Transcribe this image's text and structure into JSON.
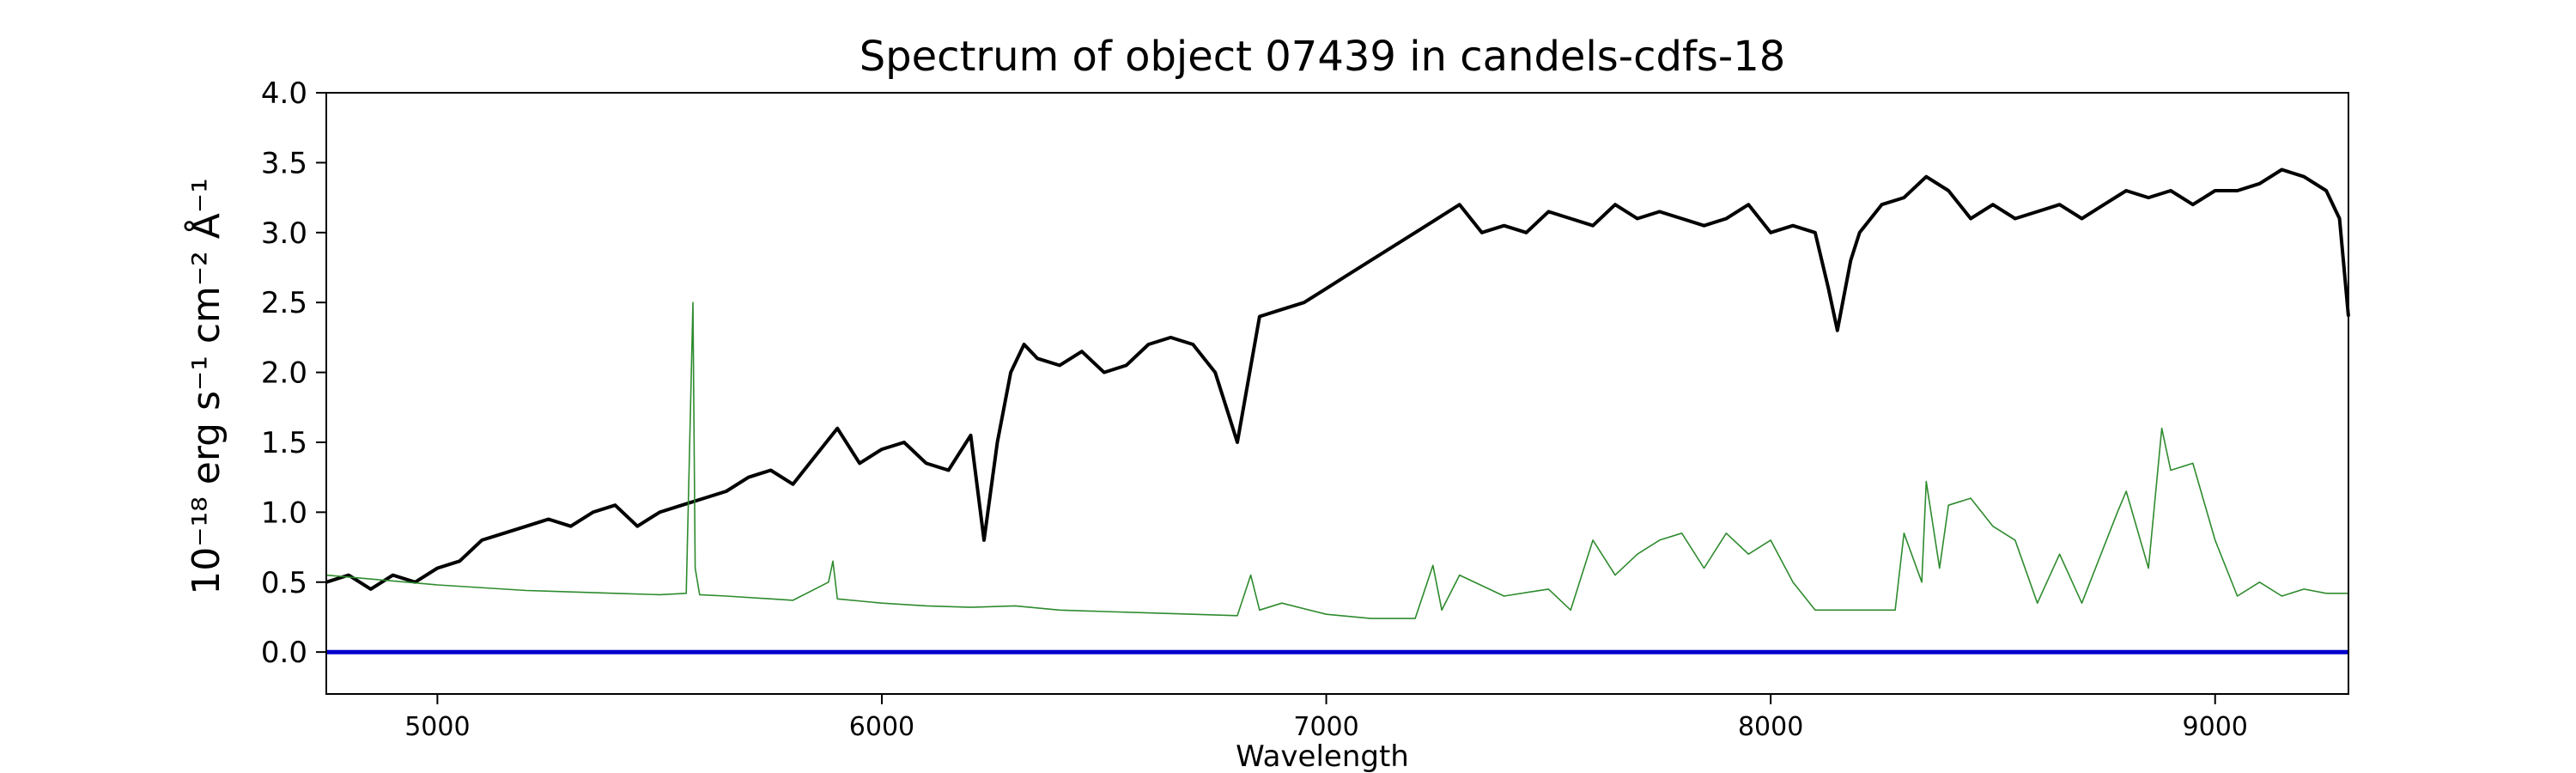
{
  "chart_data": {
    "type": "line",
    "title": "Spectrum of object 07439 in candels-cdfs-18",
    "xlabel": "Wavelength",
    "ylabel": "10⁻¹⁸ erg s⁻¹ cm⁻² Å⁻¹",
    "xlim": [
      4750,
      9300
    ],
    "ylim": [
      -0.3,
      4.0
    ],
    "x_ticks": [
      5000,
      6000,
      7000,
      8000,
      9000
    ],
    "y_ticks": [
      "0.0",
      "0.5",
      "1.0",
      "1.5",
      "2.0",
      "2.5",
      "3.0",
      "3.5",
      "4.0"
    ],
    "grid": false,
    "colors": {
      "flux": "#000000",
      "sky": "#2e8b2e",
      "zero": "#0000cc"
    },
    "series": [
      {
        "values_x": [
          4750,
          4800,
          4850,
          4900,
          4950,
          5000,
          5050,
          5100,
          5150,
          5200,
          5250,
          5300,
          5350,
          5400,
          5450,
          5500,
          5550,
          5600,
          5650,
          5700,
          5750,
          5800,
          5850,
          5900,
          5950,
          6000,
          6050,
          6100,
          6150,
          6200,
          6230,
          6260,
          6290,
          6320,
          6350,
          6400,
          6450,
          6500,
          6550,
          6600,
          6650,
          6700,
          6750,
          6780,
          6800,
          6850,
          6900,
          6950,
          7000,
          7050,
          7100,
          7150,
          7200,
          7250,
          7300,
          7350,
          7400,
          7450,
          7500,
          7550,
          7600,
          7650,
          7700,
          7750,
          7800,
          7850,
          7900,
          7950,
          8000,
          8050,
          8100,
          8130,
          8150,
          8180,
          8200,
          8250,
          8300,
          8350,
          8400,
          8450,
          8500,
          8550,
          8600,
          8650,
          8700,
          8750,
          8800,
          8850,
          8900,
          8950,
          9000,
          9050,
          9100,
          9150,
          9200,
          9250,
          9280,
          9300
        ],
        "values_y": [
          0.5,
          0.55,
          0.45,
          0.55,
          0.5,
          0.6,
          0.65,
          0.8,
          0.85,
          0.9,
          0.95,
          0.9,
          1.0,
          1.05,
          0.9,
          1.0,
          1.05,
          1.1,
          1.15,
          1.25,
          1.3,
          1.2,
          1.4,
          1.6,
          1.35,
          1.45,
          1.5,
          1.35,
          1.3,
          1.55,
          0.8,
          1.5,
          2.0,
          2.2,
          2.1,
          2.05,
          2.15,
          2.0,
          2.05,
          2.2,
          2.25,
          2.2,
          2.0,
          1.7,
          1.5,
          2.4,
          2.45,
          2.5,
          2.6,
          2.7,
          2.8,
          2.9,
          3.0,
          3.1,
          3.2,
          3.0,
          3.05,
          3.0,
          3.15,
          3.1,
          3.05,
          3.2,
          3.1,
          3.15,
          3.1,
          3.05,
          3.1,
          3.2,
          3.0,
          3.05,
          3.0,
          2.6,
          2.3,
          2.8,
          3.0,
          3.2,
          3.25,
          3.4,
          3.3,
          3.1,
          3.2,
          3.1,
          3.15,
          3.2,
          3.1,
          3.2,
          3.3,
          3.25,
          3.3,
          3.2,
          3.3,
          3.3,
          3.35,
          3.45,
          3.4,
          3.3,
          3.1,
          2.4
        ]
      },
      {
        "values_x": [
          4750,
          5000,
          5200,
          5400,
          5500,
          5560,
          5575,
          5580,
          5590,
          5650,
          5800,
          5880,
          5890,
          5900,
          6000,
          6100,
          6200,
          6300,
          6400,
          6500,
          6600,
          6700,
          6800,
          6830,
          6850,
          6900,
          7000,
          7100,
          7200,
          7240,
          7260,
          7300,
          7400,
          7500,
          7550,
          7600,
          7650,
          7700,
          7750,
          7800,
          7850,
          7900,
          7950,
          8000,
          8050,
          8100,
          8200,
          8280,
          8300,
          8340,
          8350,
          8380,
          8400,
          8450,
          8500,
          8550,
          8600,
          8650,
          8700,
          8780,
          8800,
          8850,
          8880,
          8900,
          8950,
          9000,
          9050,
          9100,
          9150,
          9200,
          9250,
          9300
        ],
        "values_y": [
          0.55,
          0.48,
          0.44,
          0.42,
          0.41,
          0.42,
          2.5,
          0.6,
          0.41,
          0.4,
          0.37,
          0.5,
          0.65,
          0.38,
          0.35,
          0.33,
          0.32,
          0.33,
          0.3,
          0.29,
          0.28,
          0.27,
          0.26,
          0.55,
          0.3,
          0.35,
          0.27,
          0.24,
          0.24,
          0.62,
          0.3,
          0.55,
          0.4,
          0.45,
          0.3,
          0.8,
          0.55,
          0.7,
          0.8,
          0.85,
          0.6,
          0.85,
          0.7,
          0.8,
          0.5,
          0.3,
          0.3,
          0.3,
          0.85,
          0.5,
          1.22,
          0.6,
          1.05,
          1.1,
          0.9,
          0.8,
          0.35,
          0.7,
          0.35,
          1.0,
          1.15,
          0.6,
          1.6,
          1.3,
          1.35,
          0.8,
          0.4,
          0.5,
          0.4,
          0.45,
          0.42,
          0.42
        ]
      },
      {
        "values_x": [
          4750,
          9300
        ],
        "values_y": [
          0.0,
          0.0
        ]
      }
    ]
  }
}
